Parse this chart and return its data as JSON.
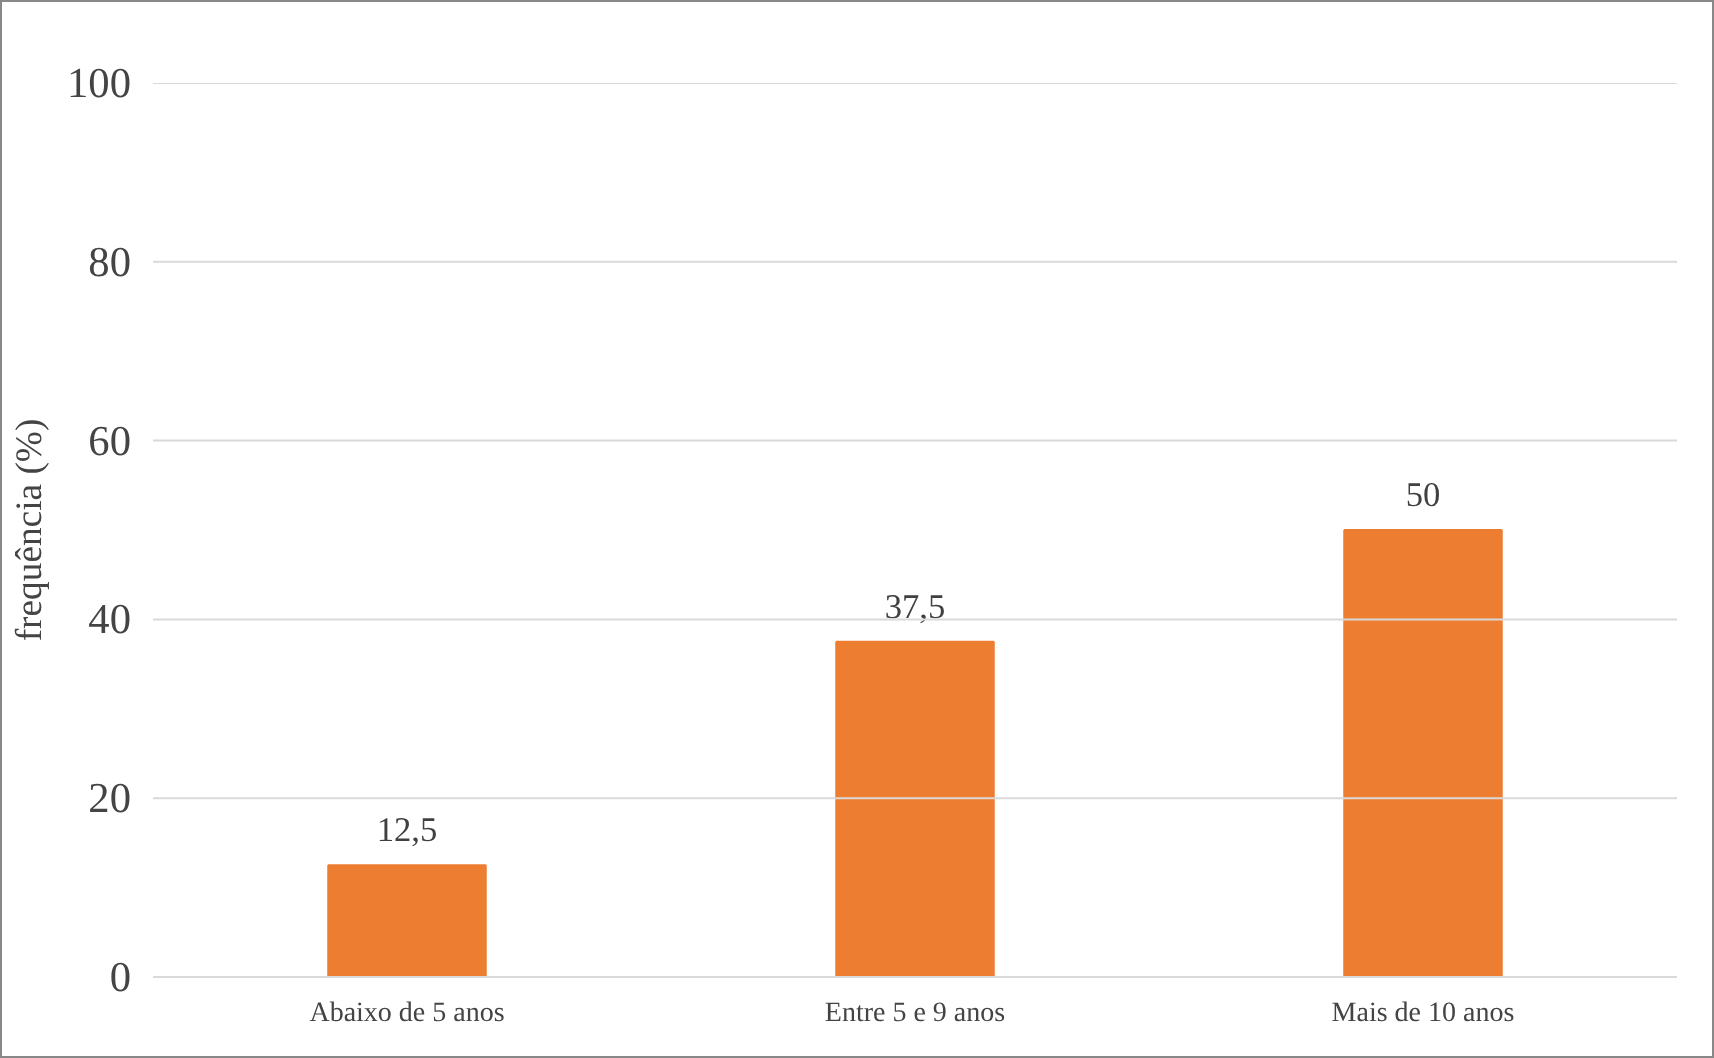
{
  "chart_data": {
    "type": "bar",
    "ylabel": "frequência (%)",
    "categories": [
      "Abaixo de 5 anos",
      "Entre 5 e 9 anos",
      "Mais de 10 anos"
    ],
    "values": [
      12.5,
      37.5,
      50
    ],
    "value_labels": [
      "12,5",
      "37,5",
      "50"
    ],
    "color": "#ed7d31",
    "ylim": [
      0,
      100
    ],
    "yticks": [
      0,
      20,
      40,
      60,
      80,
      100
    ],
    "grid": "y"
  }
}
